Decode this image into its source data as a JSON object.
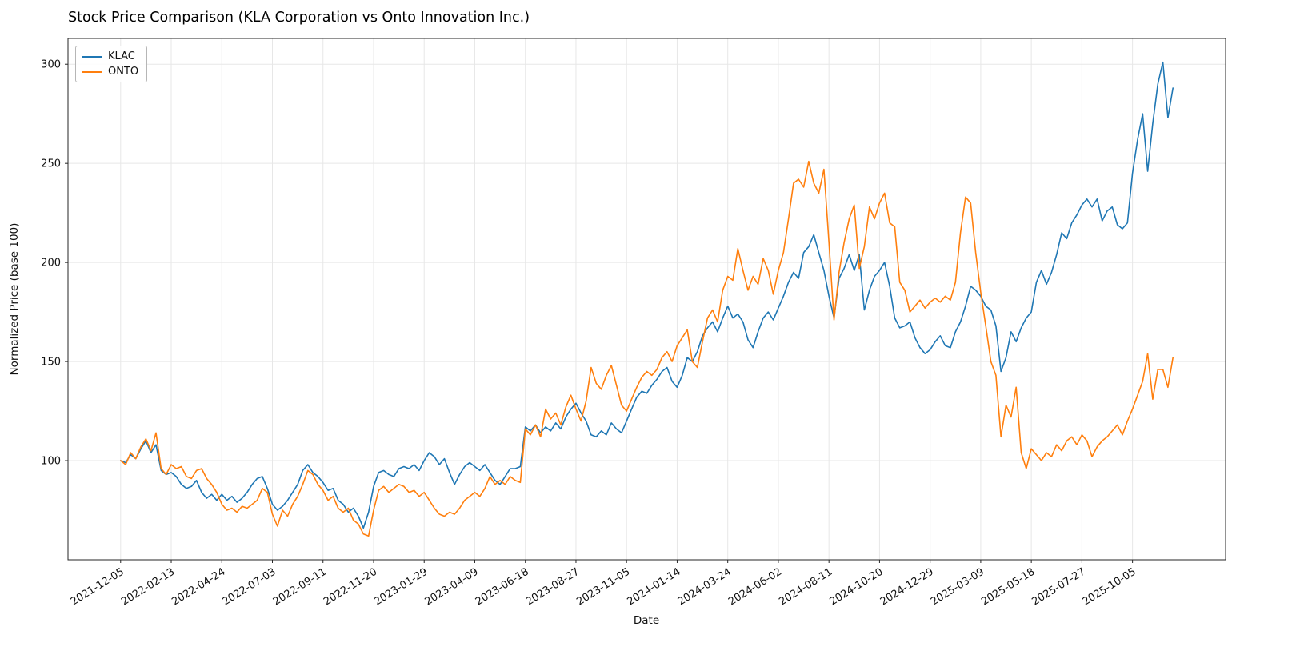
{
  "chart_data": {
    "type": "line",
    "title": "Stock Price Comparison (KLA Corporation vs Onto Innovation Inc.)",
    "xlabel": "Date",
    "ylabel": "Normalized Price (base 100)",
    "x_start": "2021-12-05",
    "x_interval": "weekly",
    "x_tick_weeks": [
      0,
      10,
      20,
      30,
      40,
      50,
      60,
      70,
      80,
      90,
      100,
      110,
      120,
      130,
      140,
      150,
      160,
      170,
      180,
      190,
      200
    ],
    "x_tick_labels": [
      "2021-12-05",
      "2022-02-13",
      "2022-04-24",
      "2022-07-03",
      "2022-09-11",
      "2022-11-20",
      "2023-01-29",
      "2023-04-09",
      "2023-06-18",
      "2023-08-27",
      "2023-11-05",
      "2024-01-14",
      "2024-03-24",
      "2024-06-02",
      "2024-08-11",
      "2024-10-20",
      "2024-12-29",
      "2025-03-09",
      "2025-05-18",
      "2025-07-27",
      "2025-10-05"
    ],
    "y_ticks": [
      100,
      150,
      200,
      250,
      300
    ],
    "ylim": [
      50,
      313
    ],
    "xlim_weeks": [
      -10.4,
      218.4
    ],
    "grid": true,
    "legend_position": "upper-left",
    "series": [
      {
        "name": "KLAC",
        "color": "#1f77b4",
        "values": [
          100,
          99,
          103,
          101,
          106,
          110,
          104,
          108,
          95,
          93,
          94,
          92,
          88,
          86,
          87,
          90,
          84,
          81,
          83,
          80,
          83,
          80,
          82,
          79,
          81,
          84,
          88,
          91,
          92,
          86,
          78,
          75,
          77,
          80,
          84,
          88,
          95,
          98,
          94,
          92,
          89,
          85,
          86,
          80,
          78,
          74,
          76,
          72,
          66,
          74,
          87,
          94,
          95,
          93,
          92,
          96,
          97,
          96,
          98,
          95,
          100,
          104,
          102,
          98,
          101,
          94,
          88,
          93,
          97,
          99,
          97,
          95,
          98,
          94,
          90,
          88,
          92,
          96,
          96,
          97,
          117,
          115,
          118,
          114,
          117,
          115,
          119,
          116,
          122,
          126,
          129,
          124,
          120,
          113,
          112,
          115,
          113,
          119,
          116,
          114,
          120,
          126,
          132,
          135,
          134,
          138,
          141,
          145,
          147,
          140,
          137,
          143,
          152,
          150,
          155,
          163,
          167,
          170,
          165,
          172,
          178,
          172,
          174,
          170,
          161,
          157,
          165,
          172,
          175,
          171,
          177,
          183,
          190,
          195,
          192,
          205,
          208,
          214,
          205,
          196,
          183,
          172,
          192,
          197,
          204,
          196,
          204,
          176,
          186,
          193,
          196,
          200,
          188,
          172,
          167,
          168,
          170,
          162,
          157,
          154,
          156,
          160,
          163,
          158,
          157,
          165,
          170,
          178,
          188,
          186,
          183,
          178,
          176,
          168,
          145,
          152,
          165,
          160,
          167,
          172,
          175,
          190,
          196,
          189,
          195,
          204,
          215,
          212,
          220,
          224,
          229,
          232,
          228,
          232,
          221,
          226,
          228,
          219,
          217,
          220,
          245,
          262,
          275,
          246,
          270,
          290,
          301,
          273,
          288
        ]
      },
      {
        "name": "ONTO",
        "color": "#ff7f0e",
        "values": [
          100,
          98,
          104,
          101,
          107,
          111,
          105,
          114,
          96,
          93,
          98,
          96,
          97,
          92,
          91,
          95,
          96,
          91,
          88,
          84,
          78,
          75,
          76,
          74,
          77,
          76,
          78,
          80,
          86,
          84,
          73,
          67,
          75,
          72,
          78,
          82,
          88,
          95,
          93,
          88,
          85,
          80,
          82,
          76,
          74,
          76,
          70,
          68,
          63,
          62,
          75,
          85,
          87,
          84,
          86,
          88,
          87,
          84,
          85,
          82,
          84,
          80,
          76,
          73,
          72,
          74,
          73,
          76,
          80,
          82,
          84,
          82,
          86,
          92,
          88,
          90,
          88,
          92,
          90,
          89,
          116,
          113,
          118,
          112,
          126,
          121,
          124,
          118,
          127,
          133,
          126,
          120,
          130,
          147,
          139,
          136,
          143,
          148,
          138,
          128,
          125,
          131,
          137,
          142,
          145,
          143,
          146,
          152,
          155,
          150,
          158,
          162,
          166,
          150,
          147,
          160,
          172,
          176,
          170,
          186,
          193,
          191,
          207,
          196,
          186,
          193,
          189,
          202,
          196,
          184,
          196,
          205,
          222,
          240,
          242,
          238,
          251,
          240,
          235,
          247,
          210,
          171,
          195,
          210,
          222,
          229,
          197,
          208,
          228,
          222,
          230,
          235,
          220,
          218,
          190,
          186,
          175,
          178,
          181,
          177,
          180,
          182,
          180,
          183,
          181,
          190,
          215,
          233,
          230,
          205,
          185,
          168,
          150,
          143,
          112,
          128,
          122,
          137,
          104,
          96,
          106,
          103,
          100,
          104,
          102,
          108,
          105,
          110,
          112,
          108,
          113,
          110,
          102,
          107,
          110,
          112,
          115,
          118,
          113,
          120,
          126,
          133,
          140,
          154,
          131,
          146,
          146,
          137,
          152
        ]
      }
    ]
  }
}
